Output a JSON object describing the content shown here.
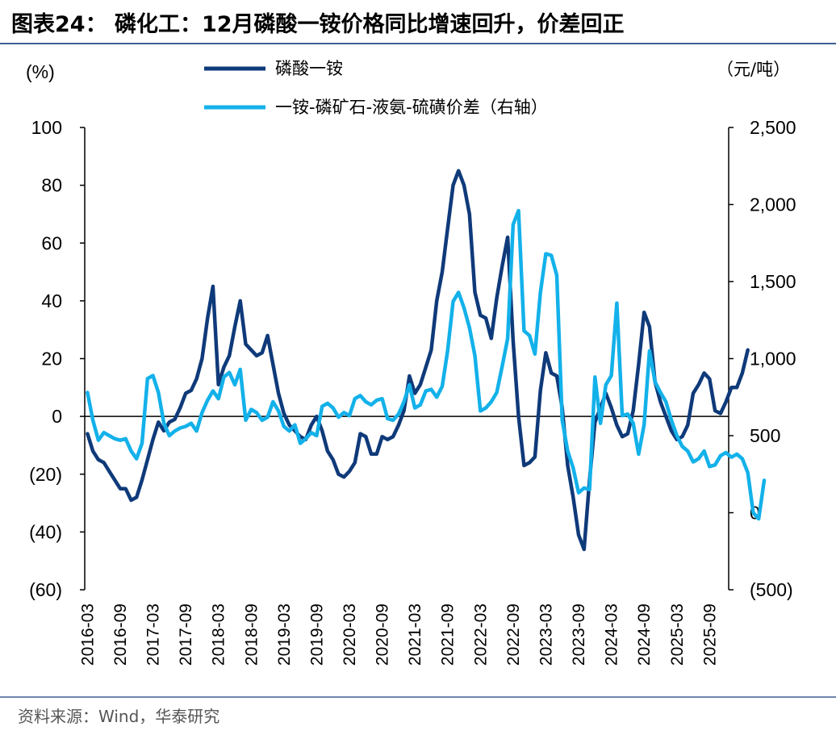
{
  "title": "图表24：  磷化工：12月磷酸一铵价格同比增速回升，价差回正",
  "source": "资料来源：Wind，华泰研究",
  "chart_data": {
    "type": "line",
    "left_axis": {
      "unit_label": "(%)",
      "min": -60,
      "max": 100,
      "ticks": [
        100,
        80,
        60,
        40,
        20,
        0,
        -20,
        -40,
        -60
      ],
      "tick_labels": [
        "100",
        "80",
        "60",
        "40",
        "20",
        "0",
        "(20)",
        "(40)",
        "(60)"
      ]
    },
    "right_axis": {
      "unit_label": "（元/吨）",
      "min": -500,
      "max": 2500,
      "ticks": [
        2500,
        2000,
        1500,
        1000,
        500,
        0,
        -500
      ],
      "tick_labels": [
        "2,500",
        "2,000",
        "1,500",
        "1,000",
        "500",
        "0",
        "(500)"
      ]
    },
    "x_tick_labels": [
      "2016-03",
      "2016-09",
      "2017-03",
      "2017-09",
      "2018-03",
      "2018-09",
      "2019-03",
      "2019-09",
      "2020-03",
      "2020-09",
      "2021-03",
      "2021-09",
      "2022-03",
      "2022-09",
      "2023-03",
      "2023-09",
      "2024-03",
      "2024-09",
      "2025-03",
      "2025-09"
    ],
    "x_start": "2016-03",
    "x_end": "2025-12",
    "series": [
      {
        "name": "磷酸一铵",
        "axis": "left",
        "color": "#0f3a7a",
        "points": [
          [
            0,
            -6
          ],
          [
            1,
            -12
          ],
          [
            2,
            -15
          ],
          [
            3,
            -16
          ],
          [
            4,
            -19
          ],
          [
            5,
            -22
          ],
          [
            6,
            -25
          ],
          [
            7,
            -25
          ],
          [
            8,
            -29
          ],
          [
            9,
            -28
          ],
          [
            10,
            -22
          ],
          [
            11,
            -15
          ],
          [
            12,
            -8
          ],
          [
            13,
            -2
          ],
          [
            14,
            -5
          ],
          [
            15,
            -2
          ],
          [
            16,
            -1
          ],
          [
            17,
            3
          ],
          [
            18,
            8
          ],
          [
            19,
            9
          ],
          [
            20,
            13
          ],
          [
            21,
            20
          ],
          [
            22,
            34
          ],
          [
            23,
            45
          ],
          [
            24,
            11
          ],
          [
            25,
            17
          ],
          [
            26,
            21
          ],
          [
            27,
            31
          ],
          [
            28,
            40
          ],
          [
            29,
            25
          ],
          [
            30,
            23
          ],
          [
            31,
            21
          ],
          [
            32,
            22
          ],
          [
            33,
            28
          ],
          [
            34,
            18
          ],
          [
            35,
            8
          ],
          [
            36,
            1
          ],
          [
            37,
            -3
          ],
          [
            38,
            -5
          ],
          [
            39,
            -7
          ],
          [
            40,
            -8
          ],
          [
            41,
            -3
          ],
          [
            42,
            0
          ],
          [
            43,
            -5
          ],
          [
            44,
            -12
          ],
          [
            45,
            -15
          ],
          [
            46,
            -20
          ],
          [
            47,
            -21
          ],
          [
            48,
            -19
          ],
          [
            49,
            -16
          ],
          [
            50,
            -6
          ],
          [
            51,
            -7
          ],
          [
            52,
            -13
          ],
          [
            53,
            -13
          ],
          [
            54,
            -7
          ],
          [
            55,
            -8
          ],
          [
            56,
            -7
          ],
          [
            57,
            -3
          ],
          [
            58,
            2
          ],
          [
            59,
            14
          ],
          [
            60,
            8
          ],
          [
            61,
            11
          ],
          [
            62,
            17
          ],
          [
            63,
            23
          ],
          [
            64,
            40
          ],
          [
            65,
            50
          ],
          [
            66,
            65
          ],
          [
            67,
            80
          ],
          [
            68,
            85
          ],
          [
            69,
            80
          ],
          [
            70,
            70
          ],
          [
            71,
            43
          ],
          [
            72,
            35
          ],
          [
            73,
            34
          ],
          [
            74,
            27
          ],
          [
            75,
            41
          ],
          [
            76,
            52
          ],
          [
            77,
            62
          ],
          [
            78,
            26
          ],
          [
            79,
            0
          ],
          [
            80,
            -17
          ],
          [
            81,
            -16
          ],
          [
            82,
            -14
          ],
          [
            83,
            9
          ],
          [
            84,
            22
          ],
          [
            85,
            15
          ],
          [
            86,
            14
          ],
          [
            87,
            3
          ],
          [
            88,
            -17
          ],
          [
            89,
            -28
          ],
          [
            90,
            -41
          ],
          [
            91,
            -46
          ],
          [
            92,
            -22
          ],
          [
            93,
            -2
          ],
          [
            94,
            3
          ],
          [
            95,
            8
          ],
          [
            96,
            3
          ],
          [
            97,
            -3
          ],
          [
            98,
            -7
          ],
          [
            99,
            -6
          ],
          [
            100,
            2
          ],
          [
            101,
            18
          ],
          [
            102,
            36
          ],
          [
            103,
            31
          ],
          [
            104,
            12
          ],
          [
            105,
            5
          ],
          [
            106,
            0
          ],
          [
            107,
            -5
          ],
          [
            108,
            -8
          ],
          [
            109,
            -7
          ],
          [
            110,
            -3
          ],
          [
            111,
            8
          ],
          [
            112,
            11
          ],
          [
            113,
            15
          ],
          [
            114,
            13
          ],
          [
            115,
            2
          ],
          [
            116,
            1
          ],
          [
            117,
            5
          ],
          [
            118,
            10
          ],
          [
            119,
            10
          ],
          [
            120,
            15
          ],
          [
            121,
            23
          ]
        ]
      },
      {
        "name": "一铵-磷矿石-液氨-硫磺价差（右轴）",
        "axis": "right",
        "color": "#13b1ea",
        "points": [
          [
            0,
            780
          ],
          [
            1,
            600
          ],
          [
            2,
            470
          ],
          [
            3,
            520
          ],
          [
            4,
            500
          ],
          [
            5,
            480
          ],
          [
            6,
            470
          ],
          [
            7,
            480
          ],
          [
            8,
            400
          ],
          [
            9,
            350
          ],
          [
            10,
            450
          ],
          [
            11,
            870
          ],
          [
            12,
            890
          ],
          [
            13,
            780
          ],
          [
            14,
            580
          ],
          [
            15,
            500
          ],
          [
            16,
            530
          ],
          [
            17,
            550
          ],
          [
            18,
            560
          ],
          [
            19,
            580
          ],
          [
            20,
            530
          ],
          [
            21,
            650
          ],
          [
            22,
            730
          ],
          [
            23,
            790
          ],
          [
            24,
            740
          ],
          [
            25,
            880
          ],
          [
            26,
            910
          ],
          [
            27,
            830
          ],
          [
            28,
            930
          ],
          [
            29,
            600
          ],
          [
            30,
            670
          ],
          [
            31,
            650
          ],
          [
            32,
            600
          ],
          [
            33,
            620
          ],
          [
            34,
            720
          ],
          [
            35,
            660
          ],
          [
            36,
            560
          ],
          [
            37,
            530
          ],
          [
            38,
            570
          ],
          [
            39,
            450
          ],
          [
            40,
            480
          ],
          [
            41,
            520
          ],
          [
            42,
            500
          ],
          [
            43,
            690
          ],
          [
            44,
            710
          ],
          [
            45,
            680
          ],
          [
            46,
            620
          ],
          [
            47,
            650
          ],
          [
            48,
            630
          ],
          [
            49,
            740
          ],
          [
            50,
            760
          ],
          [
            51,
            720
          ],
          [
            52,
            700
          ],
          [
            53,
            730
          ],
          [
            54,
            740
          ],
          [
            55,
            610
          ],
          [
            56,
            600
          ],
          [
            57,
            640
          ],
          [
            58,
            720
          ],
          [
            59,
            830
          ],
          [
            60,
            680
          ],
          [
            61,
            700
          ],
          [
            62,
            790
          ],
          [
            63,
            800
          ],
          [
            64,
            750
          ],
          [
            65,
            820
          ],
          [
            66,
            1050
          ],
          [
            67,
            1370
          ],
          [
            68,
            1430
          ],
          [
            69,
            1330
          ],
          [
            70,
            1200
          ],
          [
            71,
            1020
          ],
          [
            72,
            660
          ],
          [
            73,
            680
          ],
          [
            74,
            720
          ],
          [
            75,
            780
          ],
          [
            76,
            950
          ],
          [
            77,
            1130
          ],
          [
            78,
            1870
          ],
          [
            79,
            1960
          ],
          [
            80,
            1180
          ],
          [
            81,
            1150
          ],
          [
            82,
            1030
          ],
          [
            83,
            1430
          ],
          [
            84,
            1680
          ],
          [
            85,
            1670
          ],
          [
            86,
            1540
          ],
          [
            87,
            600
          ],
          [
            88,
            400
          ],
          [
            89,
            290
          ],
          [
            90,
            130
          ],
          [
            91,
            160
          ],
          [
            92,
            150
          ],
          [
            93,
            880
          ],
          [
            94,
            580
          ],
          [
            95,
            830
          ],
          [
            96,
            890
          ],
          [
            97,
            1360
          ],
          [
            98,
            630
          ],
          [
            99,
            640
          ],
          [
            100,
            580
          ],
          [
            101,
            380
          ],
          [
            102,
            570
          ],
          [
            103,
            1050
          ],
          [
            104,
            850
          ],
          [
            105,
            780
          ],
          [
            106,
            720
          ],
          [
            107,
            600
          ],
          [
            108,
            500
          ],
          [
            109,
            430
          ],
          [
            110,
            400
          ],
          [
            111,
            330
          ],
          [
            112,
            350
          ],
          [
            113,
            400
          ],
          [
            114,
            300
          ],
          [
            115,
            310
          ],
          [
            116,
            370
          ],
          [
            117,
            390
          ],
          [
            118,
            360
          ],
          [
            119,
            380
          ],
          [
            120,
            350
          ],
          [
            121,
            260
          ],
          [
            122,
            0
          ],
          [
            123,
            -40
          ],
          [
            124,
            210
          ]
        ]
      }
    ]
  }
}
